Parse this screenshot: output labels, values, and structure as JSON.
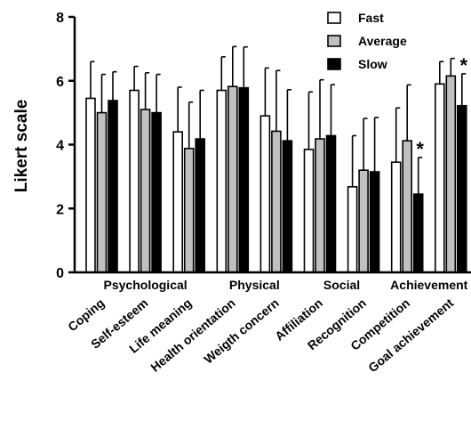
{
  "chart_data": {
    "type": "bar",
    "ylabel": "Likert scale",
    "ylim": [
      0,
      8
    ],
    "yticks": [
      0,
      2,
      4,
      6,
      8
    ],
    "categories": [
      "Coping",
      "Self-esteem",
      "Life meaning",
      "Health orientation",
      "Weigth concern",
      "Affiliation",
      "Recognition",
      "Competition",
      "Goal achievement"
    ],
    "groups": [
      {
        "label": "Psychological",
        "span": [
          0,
          2
        ]
      },
      {
        "label": "Physical",
        "span": [
          3,
          4
        ]
      },
      {
        "label": "Social",
        "span": [
          5,
          6
        ]
      },
      {
        "label": "Achievement",
        "span": [
          7,
          8
        ]
      }
    ],
    "series": [
      {
        "name": "Fast",
        "color": "#ffffff",
        "values": [
          5.45,
          5.7,
          4.4,
          5.7,
          4.9,
          3.85,
          2.68,
          3.45,
          5.9
        ],
        "errors": [
          1.15,
          0.75,
          1.4,
          1.05,
          1.5,
          1.8,
          1.6,
          1.7,
          0.7
        ]
      },
      {
        "name": "Average",
        "color": "#c0c0c0",
        "values": [
          5.0,
          5.1,
          3.88,
          5.82,
          4.42,
          4.18,
          3.2,
          4.12,
          6.15
        ],
        "errors": [
          1.2,
          1.15,
          1.45,
          1.25,
          1.9,
          1.85,
          1.62,
          1.75,
          0.55
        ]
      },
      {
        "name": "Slow",
        "color": "#000000",
        "values": [
          5.38,
          5.0,
          4.18,
          5.78,
          4.12,
          4.28,
          3.15,
          2.45,
          5.22
        ],
        "errors": [
          0.9,
          1.2,
          1.52,
          1.28,
          1.6,
          1.6,
          1.7,
          1.15,
          1.0
        ]
      }
    ],
    "annotations": [
      {
        "text": "*",
        "category": 7,
        "series": 2
      },
      {
        "text": "*",
        "category": 8,
        "series": 2
      }
    ],
    "legend": "top-right",
    "grid": false
  }
}
